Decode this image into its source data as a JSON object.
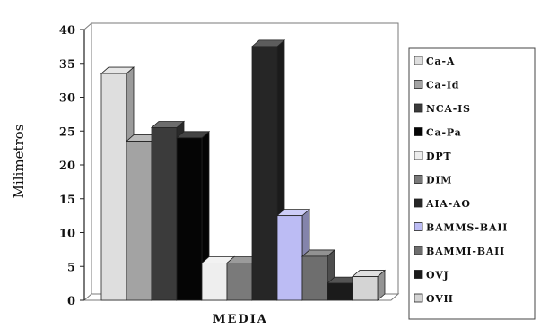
{
  "chart_data": {
    "type": "bar",
    "title": "",
    "xlabel": "",
    "ylabel": "Milimetros",
    "categories": [
      "MEDIA"
    ],
    "ylim": [
      0,
      40
    ],
    "yticks": [
      "0",
      "5",
      "10",
      "15",
      "20",
      "25",
      "30",
      "35",
      "40"
    ],
    "grid": false,
    "legend_position": "right",
    "three_d": true,
    "series": [
      {
        "name": "Ca-A",
        "values": [
          33.5
        ],
        "color": "#dedede"
      },
      {
        "name": "Ca-Id",
        "values": [
          23.5
        ],
        "color": "#a3a3a3"
      },
      {
        "name": "NCA-IS",
        "values": [
          25.5
        ],
        "color": "#3b3b3b"
      },
      {
        "name": "Ca-Pa",
        "values": [
          24
        ],
        "color": "#050505"
      },
      {
        "name": "DPT",
        "values": [
          5.5
        ],
        "color": "#eeeeee"
      },
      {
        "name": "DIM",
        "values": [
          5.5
        ],
        "color": "#7a7a7a"
      },
      {
        "name": "AIA-AO",
        "values": [
          37.5
        ],
        "color": "#262626"
      },
      {
        "name": "BAMMS-BAII",
        "values": [
          12.5
        ],
        "color": "#bcbcf4"
      },
      {
        "name": "BAMMI-BAII",
        "values": [
          6.5
        ],
        "color": "#6e6e6e"
      },
      {
        "name": "OVJ",
        "values": [
          2.5
        ],
        "color": "#1b1b1b"
      },
      {
        "name": "OVH",
        "values": [
          3.5
        ],
        "color": "#d4d4d4"
      }
    ],
    "legend_labels": [
      "Ca-A",
      "Ca-Id",
      "NCA-IS",
      "Ca-Pa",
      "DPT",
      "DIM",
      "AIA-AO",
      "BAMMS-BAII",
      "BAMMI-BAII",
      "OVJ",
      "OVH"
    ]
  }
}
